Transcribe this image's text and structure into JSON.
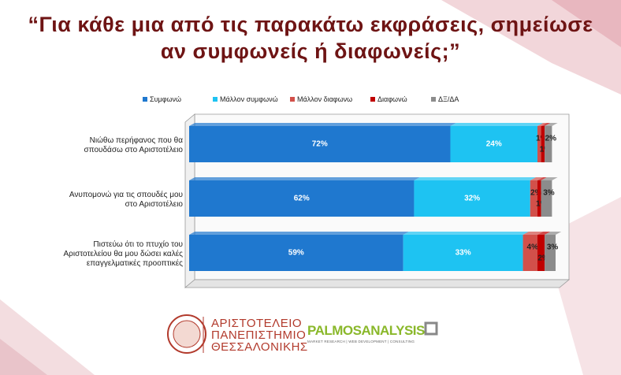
{
  "chart_data": {
    "type": "stacked-bar-horizontal",
    "title": "“Για κάθε μια από τις παρακάτω εκφράσεις, σημείωσε αν συμφωνείς ή διαφωνείς;”",
    "categories": [
      "Νιώθω περήφανος που θα σπουδάσω στο Αριστοτέλειο",
      "Ανυπομονώ για τις σπουδές μου στο Αριστοτέλειο",
      "Πιστεύω ότι το πτυχίο του Αριστοτελείου θα μου δώσει καλές επαγγελματικές προοπτικές"
    ],
    "series": [
      {
        "name": "Συμφωνώ",
        "color": "#1f78cf",
        "values": [
          72,
          62,
          59
        ],
        "value_labels": [
          "72%",
          "62%",
          "59%"
        ]
      },
      {
        "name": "Μάλλον συμφωνώ",
        "color": "#1ec3f2",
        "values": [
          24,
          32,
          33
        ],
        "value_labels": [
          "24%",
          "32%",
          "33%"
        ]
      },
      {
        "name": "Μάλλον διαφωνω",
        "color": "#d2504a",
        "values": [
          1,
          2,
          4
        ],
        "value_labels": [
          "1%",
          "2%",
          "4%"
        ]
      },
      {
        "name": "Διαφωνώ",
        "color": "#c00000",
        "values": [
          1,
          1,
          2
        ],
        "value_labels": [
          "1%",
          "1%",
          "2%"
        ]
      },
      {
        "name": "ΔΞ/ΔΑ",
        "color": "#8c8c8c",
        "values": [
          2,
          3,
          3
        ],
        "value_labels": [
          "2%",
          "3%",
          "3%"
        ]
      }
    ],
    "legend": "top"
  },
  "logos": {
    "university": [
      "ΑΡΙΣΤΟΤΕΛΕΙΟ",
      "ΠΑΝΕΠΙΣΤΗΜΙΟ",
      "ΘΕΣΣΑΛΟΝΙΚΗΣ"
    ],
    "company": "PALMOSANALYSIS",
    "company_tagline": "MARKET RESEARCH | WEB DEVELOPMENT | CONSULTING"
  }
}
